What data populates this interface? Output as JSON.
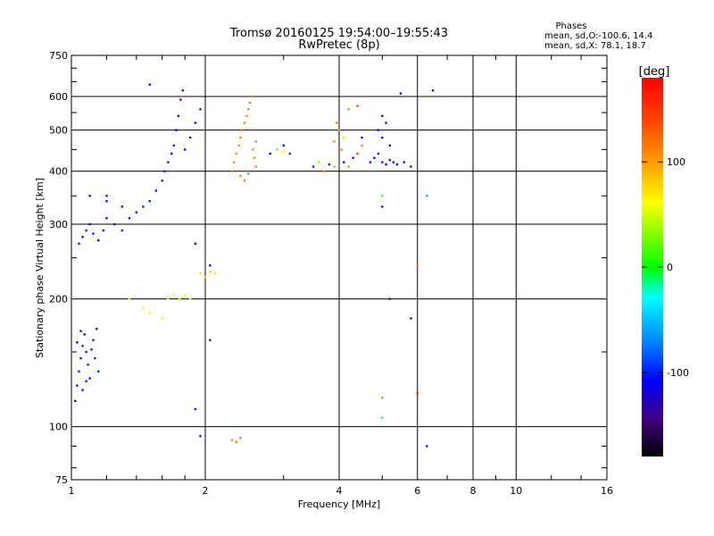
{
  "chart_data": {
    "type": "scatter",
    "title": "Tromsø 20160125 19:54:00–19:55:43",
    "subtitle": "RwPretec (8p)",
    "xlabel": "Frequency [MHz]",
    "ylabel": "Stationary phase Virtual Height [km]",
    "x_scale": "log",
    "y_scale": "log",
    "xlim": [
      1,
      16
    ],
    "ylim": [
      75,
      750
    ],
    "grid": true,
    "x_ticks": [
      1,
      2,
      4,
      6,
      8,
      10,
      16
    ],
    "x_tick_labels": [
      "1",
      "2",
      "4",
      "6",
      "8",
      "10",
      "16"
    ],
    "y_ticks": [
      75,
      100,
      200,
      300,
      400,
      500,
      600,
      750
    ],
    "y_tick_labels": [
      "75",
      "100",
      "200",
      "300",
      "400",
      "500",
      "600",
      "750"
    ],
    "phase_stats": {
      "heading": "Phases",
      "line1": "mean, sd,O:-100.6, 14.4",
      "line2": "mean, sd,X:  78.1, 18.7"
    },
    "colorbar": {
      "label": "[deg]",
      "range": [
        -180,
        180
      ],
      "ticks": [
        100,
        0,
        -100
      ],
      "tick_labels": [
        "100",
        "0",
        "-100"
      ]
    },
    "series": [
      {
        "values": [
          {
            "x": 1.02,
            "y": 115,
            "phase": -105
          },
          {
            "x": 1.03,
            "y": 125,
            "phase": -100
          },
          {
            "x": 1.04,
            "y": 135,
            "phase": -98
          },
          {
            "x": 1.05,
            "y": 145,
            "phase": -102
          },
          {
            "x": 1.06,
            "y": 155,
            "phase": -96
          },
          {
            "x": 1.07,
            "y": 165,
            "phase": -104
          },
          {
            "x": 1.08,
            "y": 150,
            "phase": -100
          },
          {
            "x": 1.09,
            "y": 140,
            "phase": -97
          },
          {
            "x": 1.1,
            "y": 130,
            "phase": -103
          },
          {
            "x": 1.12,
            "y": 160,
            "phase": -99
          },
          {
            "x": 1.13,
            "y": 145,
            "phase": -101
          },
          {
            "x": 1.15,
            "y": 135,
            "phase": -95
          },
          {
            "x": 1.05,
            "y": 168,
            "phase": -100
          },
          {
            "x": 1.03,
            "y": 158,
            "phase": -106
          },
          {
            "x": 1.11,
            "y": 152,
            "phase": -98
          },
          {
            "x": 1.08,
            "y": 128,
            "phase": -102
          },
          {
            "x": 1.14,
            "y": 170,
            "phase": -100
          },
          {
            "x": 1.06,
            "y": 122,
            "phase": -100
          },
          {
            "x": 1.04,
            "y": 270,
            "phase": -100
          },
          {
            "x": 1.06,
            "y": 280,
            "phase": -102
          },
          {
            "x": 1.08,
            "y": 290,
            "phase": -98
          },
          {
            "x": 1.1,
            "y": 300,
            "phase": -101
          },
          {
            "x": 1.12,
            "y": 285,
            "phase": -99
          },
          {
            "x": 1.15,
            "y": 275,
            "phase": -103
          },
          {
            "x": 1.18,
            "y": 290,
            "phase": -97
          },
          {
            "x": 1.2,
            "y": 310,
            "phase": -100
          },
          {
            "x": 1.25,
            "y": 300,
            "phase": -102
          },
          {
            "x": 1.3,
            "y": 290,
            "phase": -98
          },
          {
            "x": 1.35,
            "y": 310,
            "phase": -100
          },
          {
            "x": 1.4,
            "y": 320,
            "phase": -101
          },
          {
            "x": 1.45,
            "y": 330,
            "phase": -99
          },
          {
            "x": 1.5,
            "y": 340,
            "phase": -100
          },
          {
            "x": 1.55,
            "y": 360,
            "phase": -102
          },
          {
            "x": 1.6,
            "y": 380,
            "phase": -98
          },
          {
            "x": 1.62,
            "y": 400,
            "phase": -100
          },
          {
            "x": 1.65,
            "y": 420,
            "phase": -101
          },
          {
            "x": 1.68,
            "y": 440,
            "phase": -99
          },
          {
            "x": 1.7,
            "y": 460,
            "phase": -100
          },
          {
            "x": 1.72,
            "y": 500,
            "phase": -102
          },
          {
            "x": 1.74,
            "y": 540,
            "phase": -98
          },
          {
            "x": 1.76,
            "y": 590,
            "phase": -100
          },
          {
            "x": 1.78,
            "y": 620,
            "phase": -101
          },
          {
            "x": 1.8,
            "y": 450,
            "phase": -99
          },
          {
            "x": 1.85,
            "y": 480,
            "phase": -100
          },
          {
            "x": 1.9,
            "y": 520,
            "phase": -103
          },
          {
            "x": 1.95,
            "y": 560,
            "phase": -97
          },
          {
            "x": 1.2,
            "y": 350,
            "phase": -100
          },
          {
            "x": 1.3,
            "y": 330,
            "phase": -100
          },
          {
            "x": 1.5,
            "y": 640,
            "phase": -100
          },
          {
            "x": 1.1,
            "y": 350,
            "phase": -100
          },
          {
            "x": 1.2,
            "y": 340,
            "phase": -100
          },
          {
            "x": 1.35,
            "y": 200,
            "phase": 60
          },
          {
            "x": 1.45,
            "y": 190,
            "phase": 55
          },
          {
            "x": 1.5,
            "y": 185,
            "phase": 58
          },
          {
            "x": 1.6,
            "y": 180,
            "phase": 52
          },
          {
            "x": 1.65,
            "y": 200,
            "phase": 60
          },
          {
            "x": 1.7,
            "y": 205,
            "phase": 56
          },
          {
            "x": 1.75,
            "y": 200,
            "phase": 54
          },
          {
            "x": 1.8,
            "y": 203,
            "phase": 58
          },
          {
            "x": 1.85,
            "y": 200,
            "phase": 57
          },
          {
            "x": 1.95,
            "y": 230,
            "phase": 45
          },
          {
            "x": 2.0,
            "y": 225,
            "phase": 48
          },
          {
            "x": 2.05,
            "y": 232,
            "phase": 42
          },
          {
            "x": 2.1,
            "y": 230,
            "phase": 50
          },
          {
            "x": 1.9,
            "y": 270,
            "phase": -110
          },
          {
            "x": 2.05,
            "y": 240,
            "phase": -150
          },
          {
            "x": 1.9,
            "y": 110,
            "phase": -100
          },
          {
            "x": 1.95,
            "y": 95,
            "phase": -100
          },
          {
            "x": 2.05,
            "y": 160,
            "phase": -100
          },
          {
            "x": 2.3,
            "y": 93,
            "phase": 110
          },
          {
            "x": 2.35,
            "y": 92,
            "phase": 120
          },
          {
            "x": 2.4,
            "y": 94,
            "phase": 115
          },
          {
            "x": 2.3,
            "y": 400,
            "phase": 110
          },
          {
            "x": 2.32,
            "y": 420,
            "phase": 108
          },
          {
            "x": 2.35,
            "y": 440,
            "phase": 112
          },
          {
            "x": 2.38,
            "y": 460,
            "phase": 105
          },
          {
            "x": 2.4,
            "y": 480,
            "phase": 110
          },
          {
            "x": 2.42,
            "y": 500,
            "phase": 115
          },
          {
            "x": 2.45,
            "y": 520,
            "phase": 109
          },
          {
            "x": 2.48,
            "y": 540,
            "phase": 111
          },
          {
            "x": 2.5,
            "y": 560,
            "phase": 107
          },
          {
            "x": 2.52,
            "y": 580,
            "phase": 113
          },
          {
            "x": 2.55,
            "y": 600,
            "phase": 110
          },
          {
            "x": 2.58,
            "y": 430,
            "phase": 108
          },
          {
            "x": 2.6,
            "y": 410,
            "phase": 112
          },
          {
            "x": 2.4,
            "y": 390,
            "phase": 110
          },
          {
            "x": 2.5,
            "y": 395,
            "phase": 115
          },
          {
            "x": 2.56,
            "y": 450,
            "phase": 105
          },
          {
            "x": 2.6,
            "y": 470,
            "phase": 110
          },
          {
            "x": 2.45,
            "y": 380,
            "phase": 112
          },
          {
            "x": 2.8,
            "y": 440,
            "phase": -110
          },
          {
            "x": 2.9,
            "y": 450,
            "phase": 20
          },
          {
            "x": 3.0,
            "y": 460,
            "phase": -100
          },
          {
            "x": 3.1,
            "y": 440,
            "phase": -90
          },
          {
            "x": 3.0,
            "y": 445,
            "phase": 60
          },
          {
            "x": 3.5,
            "y": 410,
            "phase": -100
          },
          {
            "x": 3.6,
            "y": 420,
            "phase": 40
          },
          {
            "x": 3.7,
            "y": 400,
            "phase": 110
          },
          {
            "x": 3.8,
            "y": 415,
            "phase": -100
          },
          {
            "x": 3.9,
            "y": 410,
            "phase": 100
          },
          {
            "x": 3.9,
            "y": 470,
            "phase": 110
          },
          {
            "x": 3.95,
            "y": 520,
            "phase": 115
          },
          {
            "x": 4.0,
            "y": 500,
            "phase": 108
          },
          {
            "x": 4.05,
            "y": 450,
            "phase": 112
          },
          {
            "x": 4.1,
            "y": 420,
            "phase": -100
          },
          {
            "x": 4.2,
            "y": 410,
            "phase": 110
          },
          {
            "x": 4.3,
            "y": 430,
            "phase": -100
          },
          {
            "x": 4.4,
            "y": 440,
            "phase": 150
          },
          {
            "x": 4.5,
            "y": 480,
            "phase": -100
          },
          {
            "x": 4.2,
            "y": 560,
            "phase": 110
          },
          {
            "x": 4.4,
            "y": 570,
            "phase": 140
          },
          {
            "x": 4.1,
            "y": 480,
            "phase": 40
          },
          {
            "x": 4.5,
            "y": 460,
            "phase": 105
          },
          {
            "x": 4.7,
            "y": 420,
            "phase": -100
          },
          {
            "x": 4.8,
            "y": 430,
            "phase": -102
          },
          {
            "x": 4.9,
            "y": 440,
            "phase": -98
          },
          {
            "x": 5.0,
            "y": 420,
            "phase": -100
          },
          {
            "x": 5.1,
            "y": 415,
            "phase": -101
          },
          {
            "x": 5.2,
            "y": 425,
            "phase": -99
          },
          {
            "x": 5.3,
            "y": 420,
            "phase": -100
          },
          {
            "x": 5.0,
            "y": 480,
            "phase": -102
          },
          {
            "x": 5.1,
            "y": 520,
            "phase": -98
          },
          {
            "x": 4.9,
            "y": 500,
            "phase": -100
          },
          {
            "x": 5.2,
            "y": 460,
            "phase": -100
          },
          {
            "x": 5.0,
            "y": 540,
            "phase": -100
          },
          {
            "x": 5.4,
            "y": 415,
            "phase": -100
          },
          {
            "x": 5.6,
            "y": 420,
            "phase": -100
          },
          {
            "x": 5.8,
            "y": 410,
            "phase": -100
          },
          {
            "x": 5.0,
            "y": 330,
            "phase": -100
          },
          {
            "x": 5.2,
            "y": 200,
            "phase": -100
          },
          {
            "x": 5.0,
            "y": 350,
            "phase": 20
          },
          {
            "x": 5.5,
            "y": 610,
            "phase": -100
          },
          {
            "x": 5.0,
            "y": 117,
            "phase": 110
          },
          {
            "x": 5.0,
            "y": 105,
            "phase": -10
          },
          {
            "x": 6.0,
            "y": 120,
            "phase": 150
          },
          {
            "x": 6.0,
            "y": 240,
            "phase": 120
          },
          {
            "x": 6.3,
            "y": 90,
            "phase": -100
          },
          {
            "x": 6.5,
            "y": 620,
            "phase": -100
          },
          {
            "x": 6.3,
            "y": 350,
            "phase": -50
          },
          {
            "x": 5.8,
            "y": 180,
            "phase": -100
          }
        ]
      }
    ]
  }
}
